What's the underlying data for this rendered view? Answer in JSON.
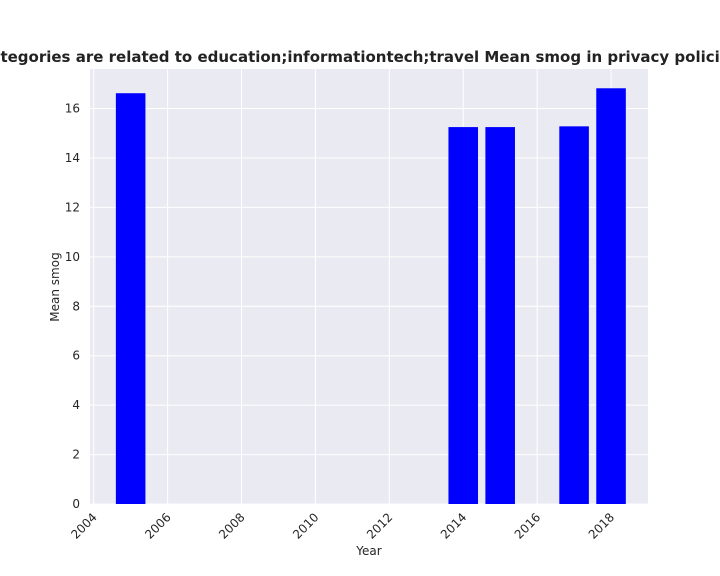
{
  "chart_data": {
    "type": "bar",
    "title": "en categories are related to education;informationtech;travel Mean smog in privacy policies by",
    "xlabel": "Year",
    "ylabel": "Mean smog",
    "x": [
      2005,
      2014,
      2015,
      2017,
      2018
    ],
    "values": [
      16.62,
      15.25,
      15.25,
      15.28,
      16.82
    ],
    "xlim": [
      2003.9,
      2019.0
    ],
    "ylim": [
      0,
      17.6
    ],
    "xticks": [
      "2004",
      "2006",
      "2008",
      "2010",
      "2012",
      "2014",
      "2016",
      "2018"
    ],
    "yticks": [
      "0",
      "2",
      "4",
      "6",
      "8",
      "10",
      "12",
      "14",
      "16"
    ],
    "bar_color": "#0000ff",
    "background_color": "#eaeaf2",
    "grid": true,
    "legend": "none"
  }
}
